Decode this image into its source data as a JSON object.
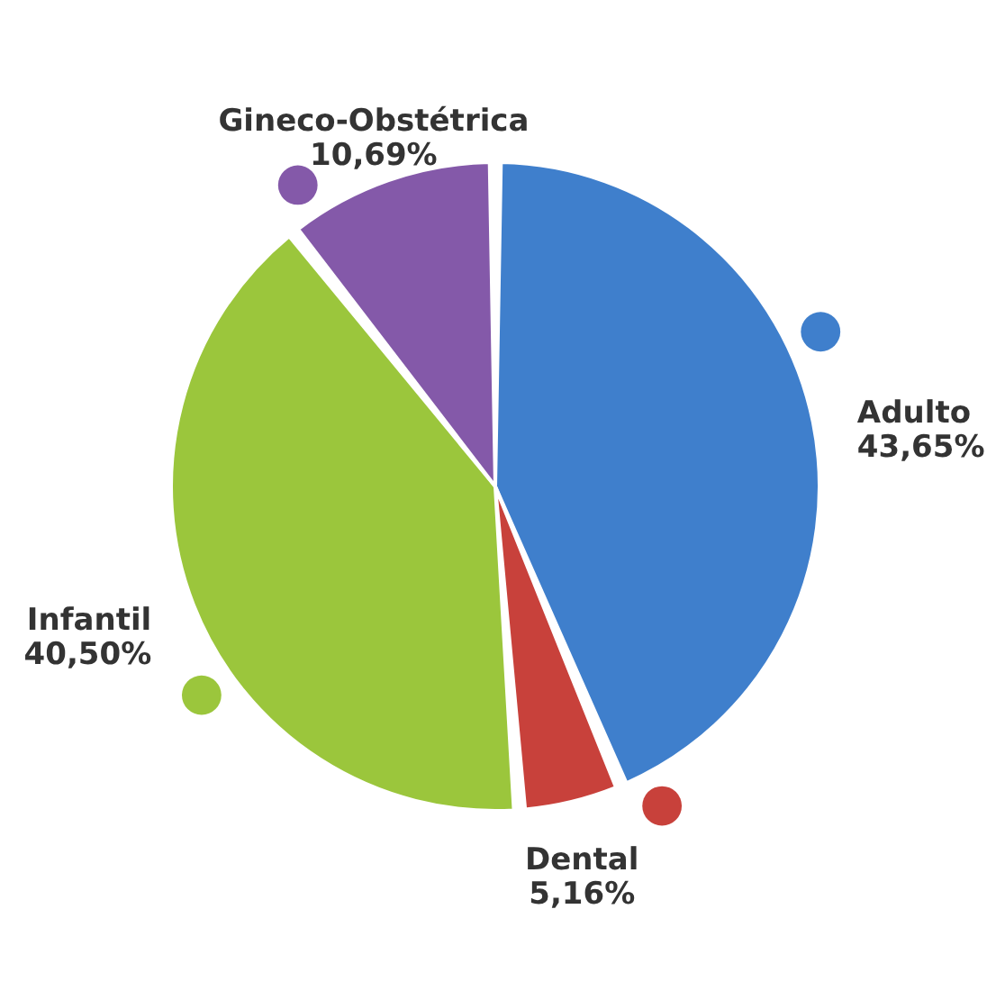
{
  "chart_data": {
    "type": "pie",
    "categories": [
      "Adulto",
      "Dental",
      "Infantil",
      "Gineco-Obstétrica"
    ],
    "values": [
      43.65,
      5.16,
      40.5,
      10.69
    ],
    "value_labels": [
      "43,65%",
      "5,16%",
      "40,50%",
      "10,69%"
    ],
    "colors": [
      "#3f7fcc",
      "#c8413b",
      "#9bc63c",
      "#8459a9"
    ]
  }
}
